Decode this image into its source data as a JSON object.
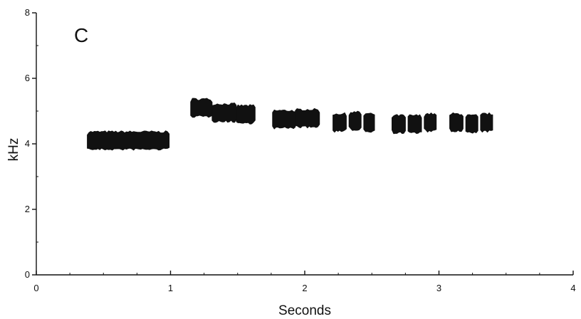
{
  "chart_data": {
    "type": "scatter",
    "panel_label": "C",
    "xlabel": "Seconds",
    "ylabel": "kHz",
    "xlim": [
      0,
      4
    ],
    "ylim": [
      0,
      8
    ],
    "x_ticks": [
      0,
      1,
      2,
      3,
      4
    ],
    "y_ticks": [
      0,
      2,
      4,
      6,
      8
    ],
    "x_minor_step": 0.25,
    "y_minor_step": 1,
    "grid": false,
    "legend": "none",
    "mark_color": "#111111",
    "segments": [
      {
        "x_start": 0.38,
        "x_end": 0.99,
        "y_low": 3.85,
        "y_high": 4.35
      },
      {
        "x_start": 1.15,
        "x_end": 1.63,
        "y_low": 4.65,
        "y_high": 5.35
      },
      {
        "x_start": 1.76,
        "x_end": 2.11,
        "y_low": 4.5,
        "y_high": 5.05
      },
      {
        "x_start": 2.21,
        "x_end": 2.52,
        "y_low": 4.35,
        "y_high": 4.95
      },
      {
        "x_start": 2.65,
        "x_end": 2.98,
        "y_low": 4.3,
        "y_high": 4.95
      },
      {
        "x_start": 3.08,
        "x_end": 3.4,
        "y_low": 4.35,
        "y_high": 4.95
      }
    ],
    "notes": [
      {
        "x_start": 0.38,
        "x_end": 0.99,
        "y": 4.1
      },
      {
        "x_start": 1.15,
        "x_end": 1.31,
        "y": 5.1
      },
      {
        "x_start": 1.31,
        "x_end": 1.49,
        "y": 4.95
      },
      {
        "x_start": 1.49,
        "x_end": 1.63,
        "y": 4.9
      },
      {
        "x_start": 1.76,
        "x_end": 1.93,
        "y": 4.75
      },
      {
        "x_start": 1.93,
        "x_end": 2.11,
        "y": 4.78
      },
      {
        "x_start": 2.21,
        "x_end": 2.31,
        "y": 4.65
      },
      {
        "x_start": 2.33,
        "x_end": 2.42,
        "y": 4.7
      },
      {
        "x_start": 2.44,
        "x_end": 2.52,
        "y": 4.65
      },
      {
        "x_start": 2.65,
        "x_end": 2.75,
        "y": 4.6
      },
      {
        "x_start": 2.77,
        "x_end": 2.87,
        "y": 4.6
      },
      {
        "x_start": 2.89,
        "x_end": 2.98,
        "y": 4.65
      },
      {
        "x_start": 3.08,
        "x_end": 3.18,
        "y": 4.65
      },
      {
        "x_start": 3.2,
        "x_end": 3.29,
        "y": 4.6
      },
      {
        "x_start": 3.31,
        "x_end": 3.4,
        "y": 4.65
      }
    ]
  }
}
